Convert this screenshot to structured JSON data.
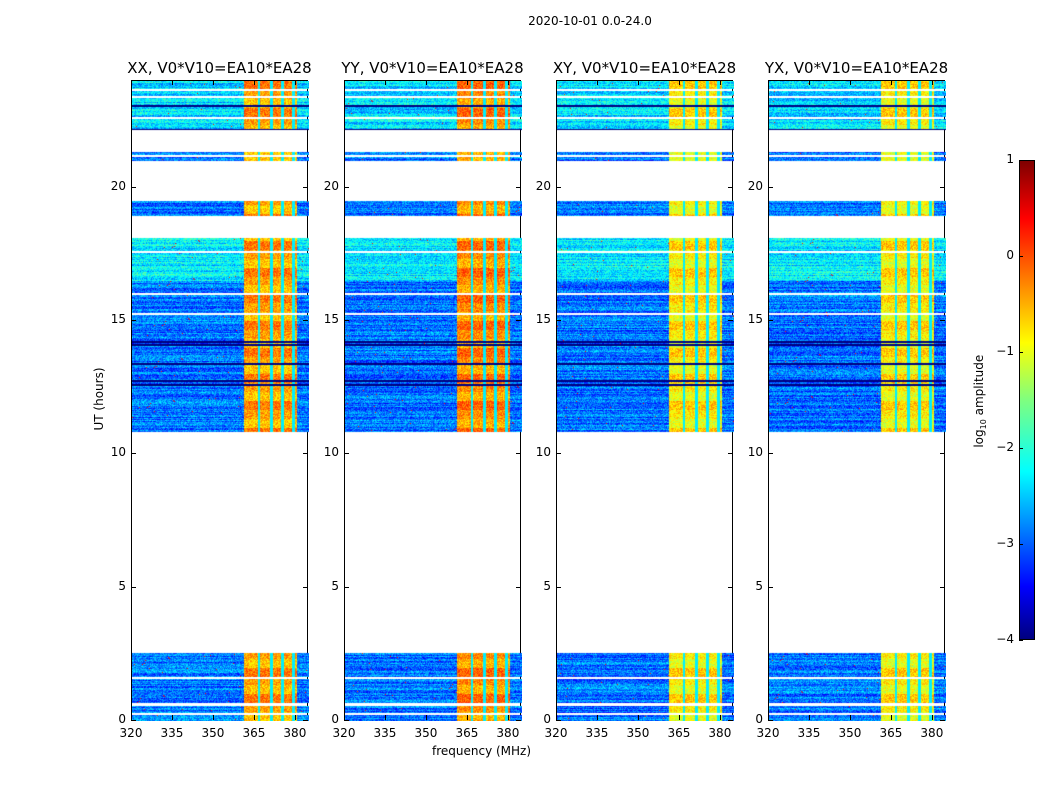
{
  "chart_data": {
    "type": "heatmap",
    "title": "2020-10-01 0.0-24.0",
    "xlabel": "frequency (MHz)",
    "ylabel": "UT (hours)",
    "xlim": [
      320,
      384.8
    ],
    "ylim": [
      0,
      24
    ],
    "xticks": [
      "320",
      "335",
      "350",
      "365",
      "380"
    ],
    "xtick_values": [
      320,
      335,
      350,
      365,
      380
    ],
    "yticks": [
      "0",
      "5",
      "10",
      "15",
      "20"
    ],
    "ytick_values": [
      0,
      5,
      10,
      15,
      20
    ],
    "panels": [
      {
        "title": "XX, V0*V10=EA10*EA28",
        "band_level": -0.4
      },
      {
        "title": "YY, V0*V10=EA10*EA28",
        "band_level": -0.3
      },
      {
        "title": "XY, V0*V10=EA10*EA28",
        "band_level": -0.8
      },
      {
        "title": "YX, V0*V10=EA10*EA28",
        "band_level": -0.8
      }
    ],
    "data_segments_hours": [
      [
        0.0,
        2.55
      ],
      [
        10.85,
        18.1
      ],
      [
        18.95,
        19.5
      ],
      [
        21.0,
        21.35
      ],
      [
        22.15,
        24.0
      ]
    ],
    "flagged_rows_hours": [
      0.25,
      0.6,
      0.65,
      1.6,
      15.25,
      16.0,
      17.6,
      21.2,
      22.6,
      23.4,
      23.65
    ],
    "dark_rows_hours": [
      12.6,
      12.75,
      13.4,
      14.1,
      14.2,
      18.7,
      18.85,
      19.6,
      19.75,
      22.15,
      23.05
    ],
    "rfi_band_mhz": [
      361,
      380.5
    ],
    "band_dips_mhz": [
      366.5,
      371,
      375,
      379
    ],
    "background_level": -2.8,
    "colorbar": {
      "label_prefix": "log",
      "label_sub": "10",
      "label_suffix": " amplitude",
      "range": [
        -4,
        1
      ],
      "ticks": [
        "1",
        "0",
        "−1",
        "−2",
        "−3",
        "−4"
      ],
      "tick_values": [
        1,
        0,
        -1,
        -2,
        -3,
        -4
      ],
      "colormap": "jet"
    }
  }
}
